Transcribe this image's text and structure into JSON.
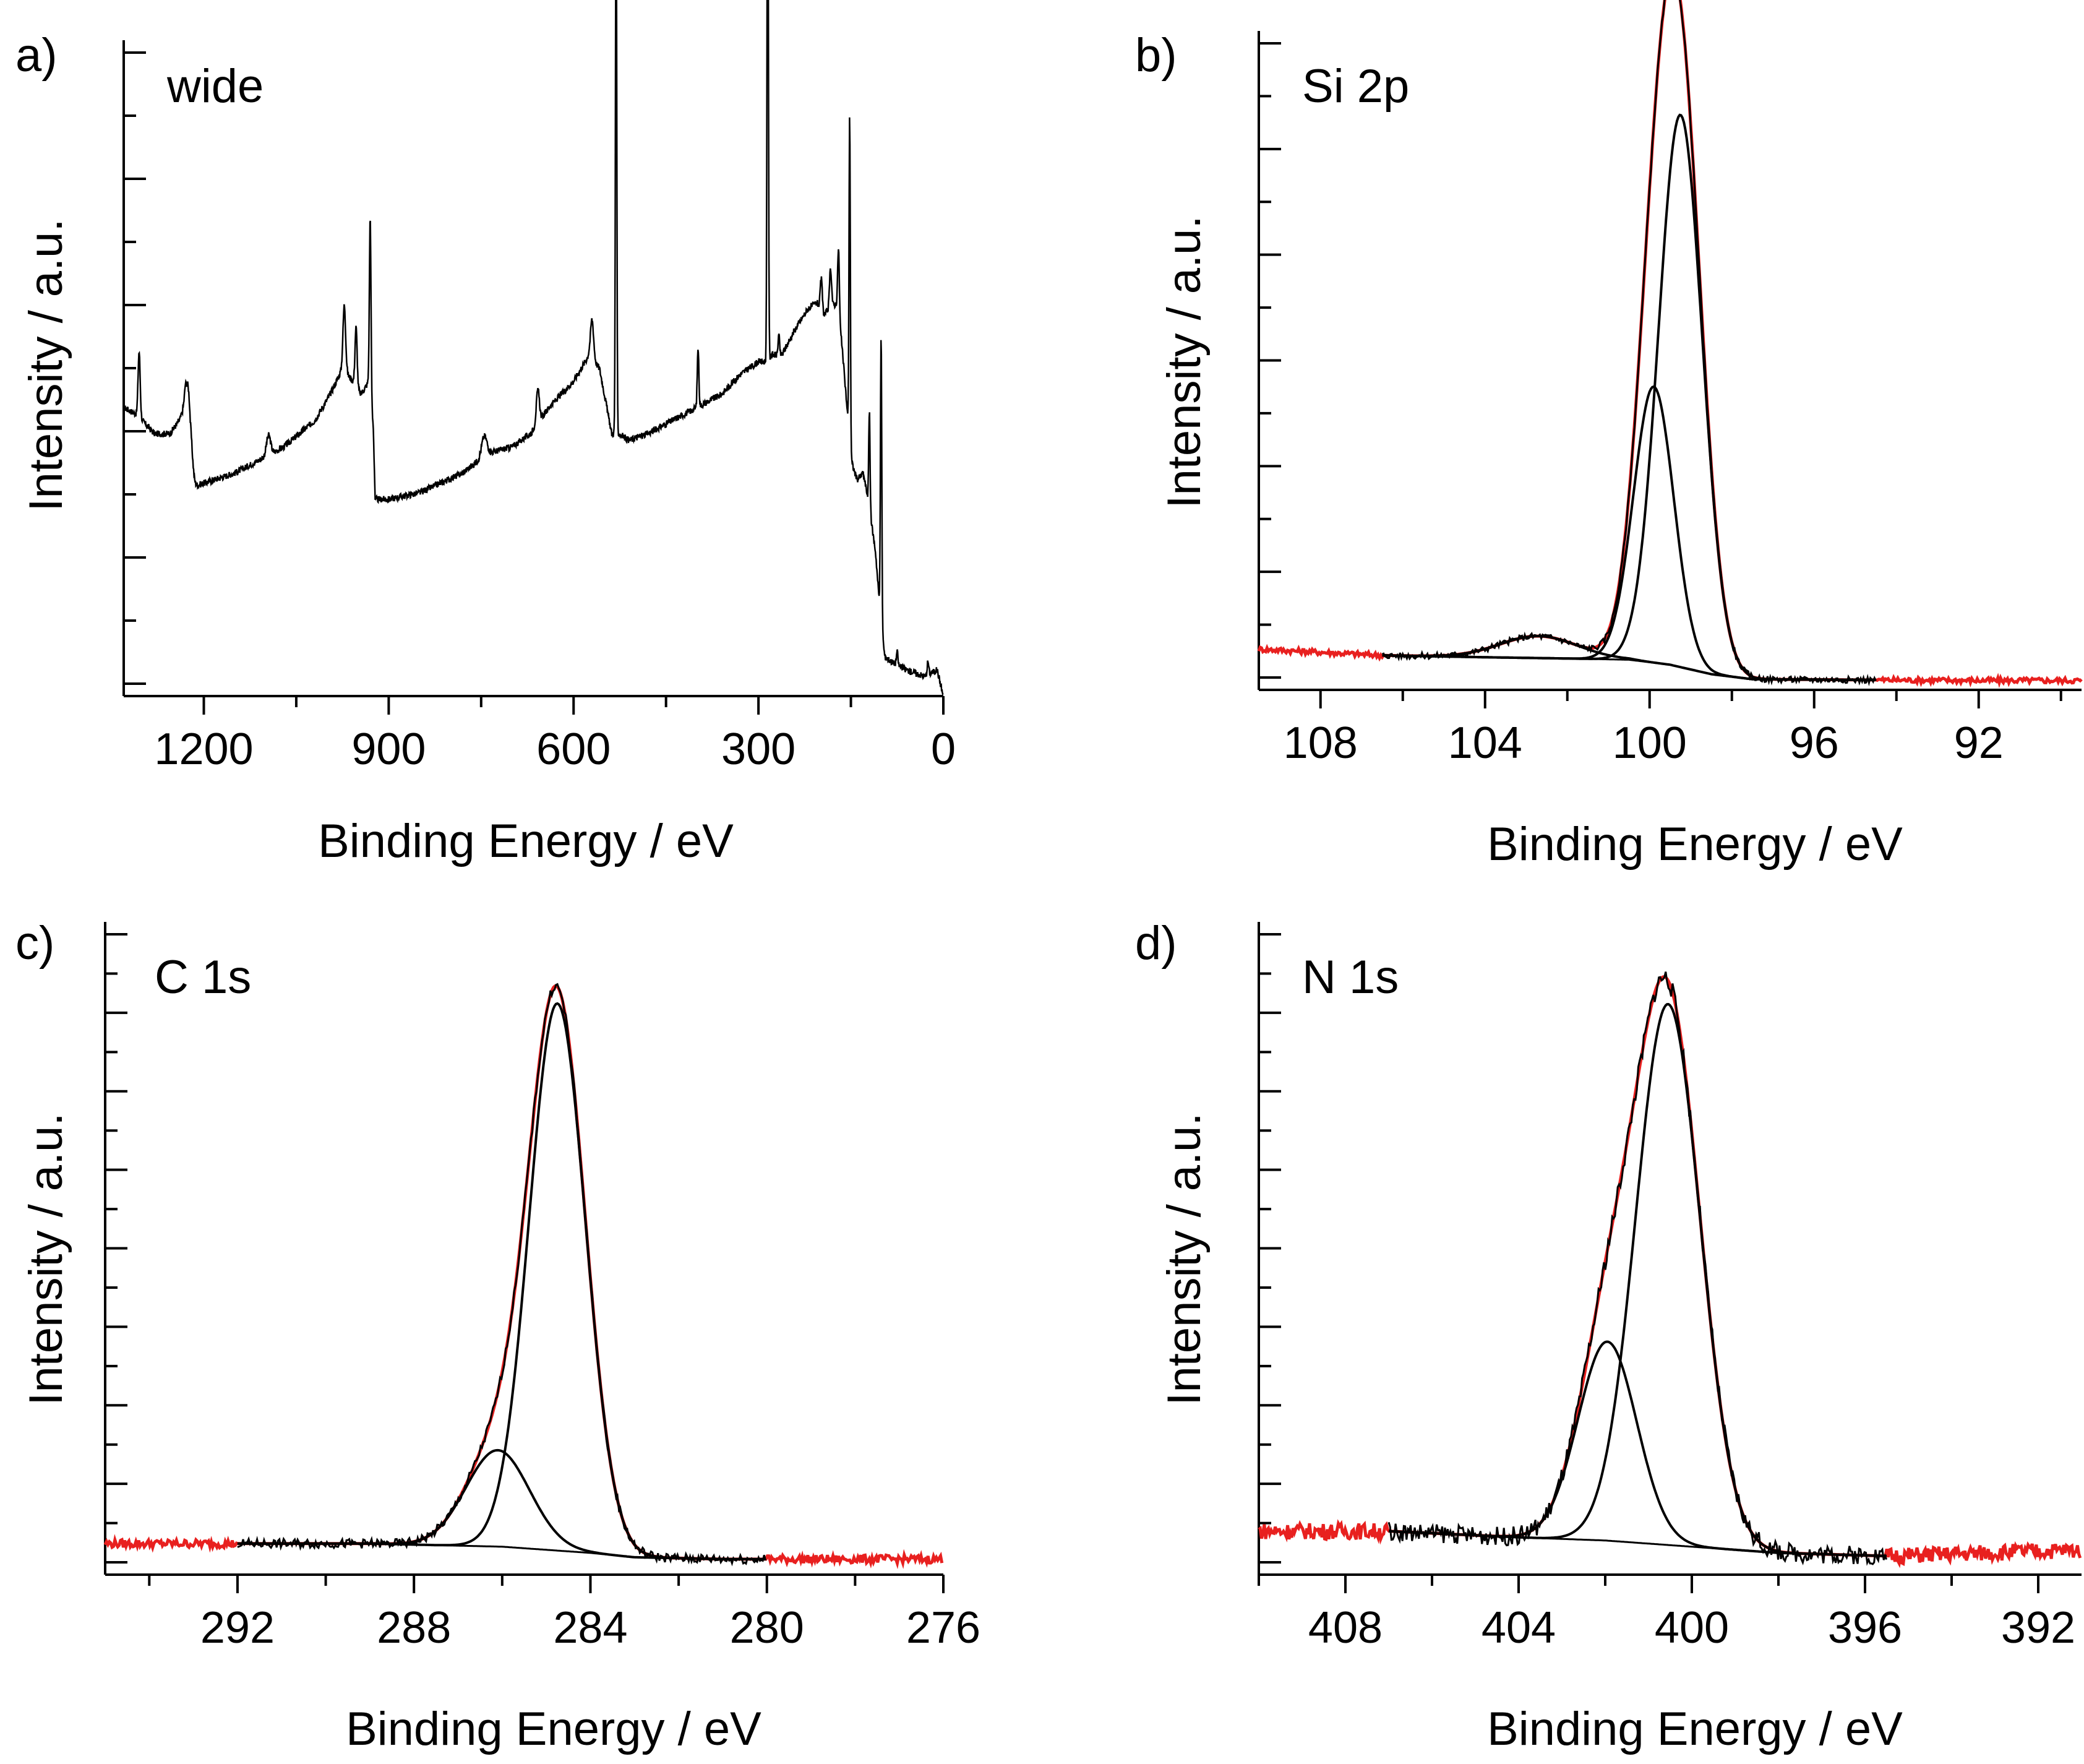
{
  "colors": {
    "axis": "#000000",
    "fit_envelope": "#e8201f",
    "components": "#000000"
  },
  "chart_data": [
    {
      "panel_label": "a)",
      "title": "wide",
      "type": "line",
      "xlabel": "Binding Energy / eV",
      "ylabel": "Intensity / a.u.",
      "xlim": [
        1330,
        0
      ],
      "ylim": [
        0,
        1
      ],
      "x_reversed": true,
      "x_ticks": [
        1200,
        900,
        600,
        300,
        0
      ],
      "x_tick_labels": [
        "1200",
        "900",
        "600",
        "300",
        "0"
      ],
      "y_tick_labels": [],
      "grid": false,
      "legend": "none",
      "baseline": [
        [
          1330,
          0.44
        ],
        [
          1310,
          0.43
        ],
        [
          1280,
          0.4
        ],
        [
          1255,
          0.4
        ],
        [
          1240,
          0.42
        ],
        [
          1230,
          0.44
        ],
        [
          1222,
          0.33
        ],
        [
          1215,
          0.32
        ],
        [
          1150,
          0.34
        ],
        [
          1110,
          0.36
        ],
        [
          1090,
          0.37
        ],
        [
          1070,
          0.38
        ],
        [
          1020,
          0.42
        ],
        [
          995,
          0.46
        ],
        [
          975,
          0.5
        ],
        [
          958,
          0.48
        ],
        [
          945,
          0.46
        ],
        [
          932,
          0.48
        ],
        [
          925,
          0.41
        ],
        [
          922,
          0.3
        ],
        [
          900,
          0.3
        ],
        [
          850,
          0.31
        ],
        [
          780,
          0.34
        ],
        [
          740,
          0.37
        ],
        [
          700,
          0.38
        ],
        [
          670,
          0.4
        ],
        [
          640,
          0.44
        ],
        [
          600,
          0.48
        ],
        [
          575,
          0.52
        ],
        [
          558,
          0.5
        ],
        [
          548,
          0.45
        ],
        [
          538,
          0.4
        ],
        [
          526,
          0.4
        ],
        [
          510,
          0.39
        ],
        [
          480,
          0.4
        ],
        [
          440,
          0.42
        ],
        [
          400,
          0.44
        ],
        [
          360,
          0.46
        ],
        [
          330,
          0.49
        ],
        [
          300,
          0.51
        ],
        [
          288,
          0.51
        ],
        [
          278,
          0.52
        ],
        [
          262,
          0.52
        ],
        [
          240,
          0.56
        ],
        [
          220,
          0.59
        ],
        [
          205,
          0.6
        ],
        [
          195,
          0.58
        ],
        [
          185,
          0.59
        ],
        [
          172,
          0.6
        ],
        [
          165,
          0.54
        ],
        [
          158,
          0.46
        ],
        [
          150,
          0.36
        ],
        [
          140,
          0.33
        ],
        [
          130,
          0.34
        ],
        [
          122,
          0.3
        ],
        [
          110,
          0.22
        ],
        [
          102,
          0.12
        ],
        [
          95,
          0.06
        ],
        [
          80,
          0.05
        ],
        [
          60,
          0.04
        ],
        [
          30,
          0.03
        ],
        [
          10,
          0.04
        ],
        [
          0,
          0.0
        ]
      ],
      "peaks": [
        {
          "x": 1305,
          "y": 0.1,
          "w": 4
        },
        {
          "x": 1224,
          "y": 0.1,
          "w": 10
        },
        {
          "x": 1095,
          "y": 0.03,
          "w": 8
        },
        {
          "x": 972,
          "y": 0.1,
          "w": 5
        },
        {
          "x": 953,
          "y": 0.09,
          "w": 4
        },
        {
          "x": 930,
          "y": 0.27,
          "w": 3
        },
        {
          "x": 745,
          "y": 0.03,
          "w": 10
        },
        {
          "x": 658,
          "y": 0.05,
          "w": 6
        },
        {
          "x": 570,
          "y": 0.06,
          "w": 6
        },
        {
          "x": 531,
          "y": 0.85,
          "w": 2.5
        },
        {
          "x": 398,
          "y": 0.09,
          "w": 3
        },
        {
          "x": 285,
          "y": 0.9,
          "w": 2.5
        },
        {
          "x": 267,
          "y": 0.03,
          "w": 3
        },
        {
          "x": 198,
          "y": 0.05,
          "w": 4
        },
        {
          "x": 183,
          "y": 0.06,
          "w": 4
        },
        {
          "x": 170,
          "y": 0.1,
          "w": 3
        },
        {
          "x": 152,
          "y": 0.5,
          "w": 2.5
        },
        {
          "x": 120,
          "y": 0.15,
          "w": 2.5
        },
        {
          "x": 101,
          "y": 0.44,
          "w": 2.5
        },
        {
          "x": 75,
          "y": 0.02,
          "w": 3
        },
        {
          "x": 25,
          "y": 0.02,
          "w": 3
        }
      ]
    },
    {
      "panel_label": "b)",
      "title": "Si 2p",
      "type": "line",
      "xlabel": "Binding Energy / eV",
      "ylabel": "Intensity / a.u.",
      "xlim": [
        109.5,
        89.5
      ],
      "ylim": [
        0,
        1.05
      ],
      "x_reversed": true,
      "x_ticks": [
        108,
        104,
        100,
        96,
        92
      ],
      "x_tick_labels": [
        "108",
        "104",
        "100",
        "96",
        "92"
      ],
      "y_tick_labels": [],
      "grid": false,
      "legend": "none",
      "raw_range": [
        109.5,
        89.5
      ],
      "component_range": [
        106.5,
        94.5
      ],
      "background": [
        [
          109.5,
          0.065
        ],
        [
          106.5,
          0.055
        ],
        [
          104,
          0.052
        ],
        [
          102,
          0.05
        ],
        [
          100.5,
          0.048
        ],
        [
          99.5,
          0.04
        ],
        [
          98.5,
          0.025
        ],
        [
          97.5,
          0.017
        ],
        [
          95,
          0.016
        ],
        [
          92,
          0.015
        ],
        [
          89.5,
          0.015
        ]
      ],
      "components": [
        {
          "center": 99.25,
          "height": 0.88,
          "fwhm": 1.25
        },
        {
          "center": 99.9,
          "height": 0.44,
          "fwhm": 1.15
        },
        {
          "center": 102.7,
          "height": 0.035,
          "fwhm": 2.2
        }
      ]
    },
    {
      "panel_label": "c)",
      "title": "C 1s",
      "type": "line",
      "xlabel": "Binding Energy / eV",
      "ylabel": "Intensity / a.u.",
      "xlim": [
        295,
        276
      ],
      "ylim": [
        0,
        1.05
      ],
      "x_reversed": true,
      "x_ticks": [
        292,
        288,
        284,
        280,
        276
      ],
      "x_tick_labels": [
        "292",
        "288",
        "284",
        "280",
        "276"
      ],
      "y_tick_labels": [],
      "grid": false,
      "legend": "none",
      "raw_range": [
        295,
        276
      ],
      "component_range": [
        292,
        280
      ],
      "background": [
        [
          295,
          0.05
        ],
        [
          292,
          0.05
        ],
        [
          289,
          0.05
        ],
        [
          286,
          0.045
        ],
        [
          284,
          0.035
        ],
        [
          283,
          0.028
        ],
        [
          281,
          0.025
        ],
        [
          276,
          0.025
        ]
      ],
      "components": [
        {
          "center": 284.75,
          "height": 0.88,
          "fwhm": 1.5
        },
        {
          "center": 286.1,
          "height": 0.155,
          "fwhm": 1.7
        }
      ]
    },
    {
      "panel_label": "d)",
      "title": "N 1s",
      "type": "line",
      "xlabel": "Binding Energy / eV",
      "ylabel": "Intensity / a.u.",
      "xlim": [
        410,
        391
      ],
      "ylim": [
        0,
        1.05
      ],
      "x_reversed": true,
      "x_ticks": [
        408,
        404,
        400,
        396,
        392
      ],
      "x_tick_labels": [
        "408",
        "404",
        "400",
        "396",
        "392"
      ],
      "y_tick_labels": [],
      "grid": false,
      "legend": "none",
      "raw_range": [
        410,
        391
      ],
      "component_range": [
        407,
        395.5
      ],
      "background": [
        [
          410,
          0.07
        ],
        [
          407,
          0.07
        ],
        [
          404,
          0.06
        ],
        [
          402,
          0.055
        ],
        [
          400,
          0.045
        ],
        [
          398,
          0.035
        ],
        [
          395.5,
          0.03
        ],
        [
          391,
          0.04
        ]
      ],
      "components": [
        {
          "center": 400.55,
          "height": 0.87,
          "fwhm": 1.75
        },
        {
          "center": 401.95,
          "height": 0.32,
          "fwhm": 1.6
        }
      ]
    }
  ]
}
